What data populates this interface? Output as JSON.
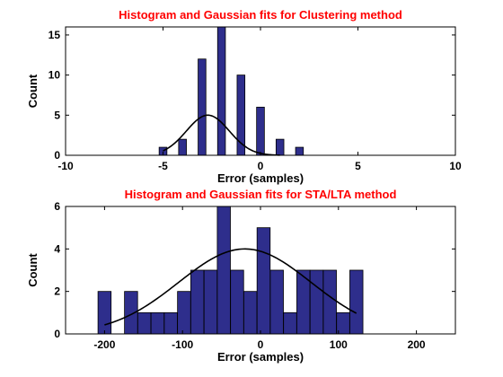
{
  "chart_data": [
    {
      "type": "bar",
      "title": "Histogram and Gaussian fits for Clustering method",
      "xlabel": "Error (samples)",
      "ylabel": "Count",
      "xlim": [
        -10,
        10
      ],
      "ylim": [
        0,
        16
      ],
      "xticks": [
        "-10",
        "-5",
        "0",
        "5",
        "10"
      ],
      "yticks": [
        "0",
        "5",
        "10",
        "15"
      ],
      "bar_width": 0.4,
      "bar_color": "#2e2e8c",
      "bars": [
        {
          "x": -5,
          "count": 1
        },
        {
          "x": -4,
          "count": 2
        },
        {
          "x": -3,
          "count": 12
        },
        {
          "x": -2,
          "count": 16
        },
        {
          "x": -1,
          "count": 10
        },
        {
          "x": 0,
          "count": 6
        },
        {
          "x": 1,
          "count": 2
        },
        {
          "x": 2,
          "count": 1
        }
      ],
      "gaussian_fit": {
        "mean": -2.7,
        "sigma": 1.1,
        "peak": 5,
        "x_range": [
          -5,
          1
        ]
      }
    },
    {
      "type": "bar",
      "title": "Histogram and Gaussian fits for STA/LTA method",
      "xlabel": "Error (samples)",
      "ylabel": "Count",
      "xlim": [
        -250,
        250
      ],
      "ylim": [
        0,
        6
      ],
      "xticks": [
        "-200",
        "-100",
        "0",
        "100",
        "200"
      ],
      "yticks": [
        "0",
        "2",
        "4",
        "6"
      ],
      "bar_width": 16.8,
      "bar_color": "#2e2e8c",
      "bars": [
        {
          "x": -200,
          "count": 2
        },
        {
          "x": -183,
          "count": 0
        },
        {
          "x": -166,
          "count": 2
        },
        {
          "x": -149,
          "count": 1
        },
        {
          "x": -132,
          "count": 1
        },
        {
          "x": -115,
          "count": 1
        },
        {
          "x": -98,
          "count": 2
        },
        {
          "x": -81,
          "count": 3
        },
        {
          "x": -64,
          "count": 3
        },
        {
          "x": -47,
          "count": 6
        },
        {
          "x": -30,
          "count": 3
        },
        {
          "x": -13,
          "count": 2
        },
        {
          "x": 4,
          "count": 5
        },
        {
          "x": 21,
          "count": 3
        },
        {
          "x": 38,
          "count": 1
        },
        {
          "x": 55,
          "count": 3
        },
        {
          "x": 72,
          "count": 3
        },
        {
          "x": 89,
          "count": 3
        },
        {
          "x": 106,
          "count": 1
        },
        {
          "x": 123,
          "count": 3
        }
      ],
      "gaussian_fit": {
        "mean": -20,
        "sigma": 85,
        "peak": 4,
        "x_range": [
          -200,
          123
        ]
      }
    }
  ]
}
